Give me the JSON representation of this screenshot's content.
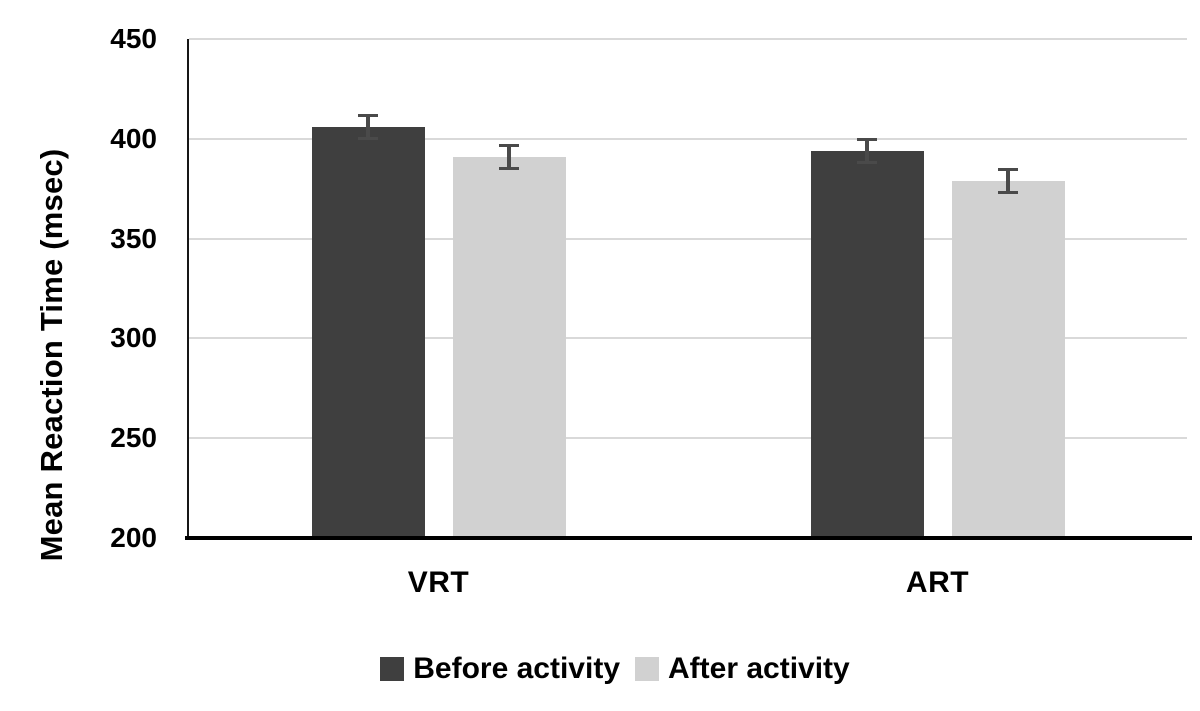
{
  "chart_data": {
    "type": "bar",
    "title": "",
    "categories": [
      "VRT",
      "ART"
    ],
    "series": [
      {
        "name": "Before activity",
        "color": "#3f3f3f",
        "values": [
          406,
          394
        ],
        "errors": [
          6,
          6
        ]
      },
      {
        "name": "After activity",
        "color": "#d1d1d1",
        "values": [
          391,
          379
        ],
        "errors": [
          6,
          6
        ]
      }
    ],
    "xlabel": "",
    "ylabel": "Mean Reaction Time (msec)",
    "ylim": [
      200,
      450
    ],
    "yticks": [
      200,
      250,
      300,
      350,
      400,
      450
    ],
    "grid": "horizontal",
    "legend_position": "bottom",
    "gridline_color": "#d9d9d9",
    "axis_color": "#000000",
    "error_bar_color": "#4a4a4a",
    "text_color": "#000000"
  }
}
